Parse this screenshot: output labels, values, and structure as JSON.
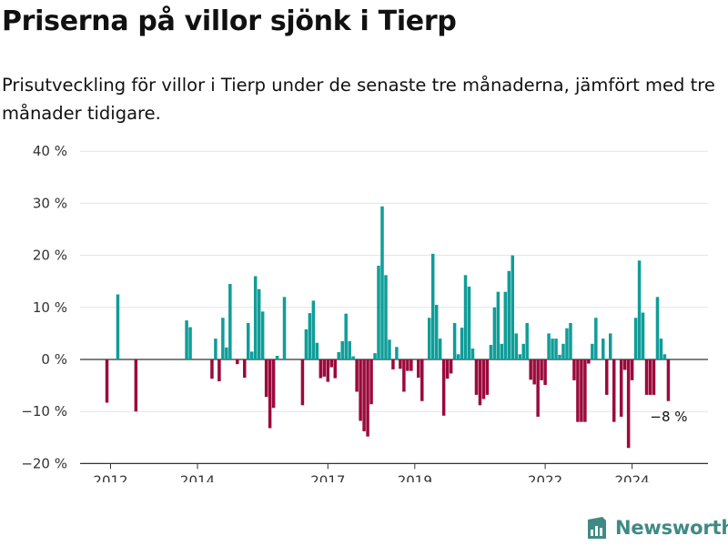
{
  "header": {
    "title": "Priserna på villor sjönk i Tierp",
    "subtitle": "Prisutveckling för villor i Tierp under de senaste tre månaderna, jämfört med tre månader tidigare."
  },
  "brand": {
    "name": "Newsworthy",
    "icon": "newsworthy-logo-icon"
  },
  "colors": {
    "positive": "#109d98",
    "negative": "#9b0a3c",
    "grid": "#e3e3e3",
    "axis": "#333333"
  },
  "chart_data": {
    "type": "bar",
    "title": "Priserna på villor sjönk i Tierp",
    "subtitle": "Prisutveckling för villor i Tierp under de senaste tre månaderna, jämfört med tre månader tidigare.",
    "xlabel": "",
    "ylabel": "",
    "unit": "%",
    "ylim": [
      -20,
      40
    ],
    "y_ticks": [
      40,
      30,
      20,
      10,
      0,
      -10,
      -20
    ],
    "y_tick_labels": [
      "40 %",
      "30 %",
      "20 %",
      "10 %",
      "0 %",
      "−10 %",
      "−20 %"
    ],
    "x_ticks": [
      "2012",
      "2014",
      "2017",
      "2019",
      "2022",
      "2024"
    ],
    "grid": true,
    "series": [
      {
        "values": [
          {
            "x": "2011-12",
            "y": -8.3
          },
          {
            "x": "2012-03",
            "y": 12.5
          },
          {
            "x": "2012-08",
            "y": -10.0
          },
          {
            "x": "2013-10",
            "y": 7.5
          },
          {
            "x": "2013-11",
            "y": 6.2
          },
          {
            "x": "2014-05",
            "y": -3.7
          },
          {
            "x": "2014-06",
            "y": 4.0
          },
          {
            "x": "2014-07",
            "y": -4.2
          },
          {
            "x": "2014-08",
            "y": 8.0
          },
          {
            "x": "2014-09",
            "y": 2.3
          },
          {
            "x": "2014-10",
            "y": 14.5
          },
          {
            "x": "2014-12",
            "y": -0.9
          },
          {
            "x": "2015-02",
            "y": -3.5
          },
          {
            "x": "2015-03",
            "y": 7.0
          },
          {
            "x": "2015-04",
            "y": 1.5
          },
          {
            "x": "2015-05",
            "y": 16.0
          },
          {
            "x": "2015-06",
            "y": 13.5
          },
          {
            "x": "2015-07",
            "y": 9.2
          },
          {
            "x": "2015-08",
            "y": -7.2
          },
          {
            "x": "2015-09",
            "y": -13.2
          },
          {
            "x": "2015-10",
            "y": -9.3
          },
          {
            "x": "2015-11",
            "y": 0.7
          },
          {
            "x": "2016-01",
            "y": 12.0
          },
          {
            "x": "2016-06",
            "y": -8.8
          },
          {
            "x": "2016-07",
            "y": 5.8
          },
          {
            "x": "2016-08",
            "y": 8.9
          },
          {
            "x": "2016-09",
            "y": 11.3
          },
          {
            "x": "2016-10",
            "y": 3.2
          },
          {
            "x": "2016-11",
            "y": -3.6
          },
          {
            "x": "2016-12",
            "y": -3.3
          },
          {
            "x": "2017-01",
            "y": -4.3
          },
          {
            "x": "2017-02",
            "y": -1.5
          },
          {
            "x": "2017-03",
            "y": -3.6
          },
          {
            "x": "2017-04",
            "y": 1.4
          },
          {
            "x": "2017-05",
            "y": 3.5
          },
          {
            "x": "2017-06",
            "y": 8.8
          },
          {
            "x": "2017-07",
            "y": 3.5
          },
          {
            "x": "2017-08",
            "y": 0.6
          },
          {
            "x": "2017-09",
            "y": -6.2
          },
          {
            "x": "2017-10",
            "y": -11.8
          },
          {
            "x": "2017-11",
            "y": -13.8
          },
          {
            "x": "2017-12",
            "y": -14.8
          },
          {
            "x": "2018-01",
            "y": -8.6
          },
          {
            "x": "2018-02",
            "y": 1.2
          },
          {
            "x": "2018-03",
            "y": 18.0
          },
          {
            "x": "2018-04",
            "y": 29.4
          },
          {
            "x": "2018-05",
            "y": 16.2
          },
          {
            "x": "2018-06",
            "y": 3.8
          },
          {
            "x": "2018-07",
            "y": -1.9
          },
          {
            "x": "2018-08",
            "y": 2.4
          },
          {
            "x": "2018-09",
            "y": -1.8
          },
          {
            "x": "2018-10",
            "y": -6.2
          },
          {
            "x": "2018-11",
            "y": -2.2
          },
          {
            "x": "2018-12",
            "y": -2.2
          },
          {
            "x": "2019-02",
            "y": -3.5
          },
          {
            "x": "2019-03",
            "y": -8.0
          },
          {
            "x": "2019-05",
            "y": 8.0
          },
          {
            "x": "2019-06",
            "y": 20.3
          },
          {
            "x": "2019-07",
            "y": 10.5
          },
          {
            "x": "2019-08",
            "y": 4.0
          },
          {
            "x": "2019-09",
            "y": -10.8
          },
          {
            "x": "2019-10",
            "y": -3.7
          },
          {
            "x": "2019-11",
            "y": -2.7
          },
          {
            "x": "2019-12",
            "y": 7.0
          },
          {
            "x": "2020-01",
            "y": 1.0
          },
          {
            "x": "2020-02",
            "y": 6.1
          },
          {
            "x": "2020-03",
            "y": 16.2
          },
          {
            "x": "2020-04",
            "y": 14.0
          },
          {
            "x": "2020-05",
            "y": 2.1
          },
          {
            "x": "2020-06",
            "y": -6.8
          },
          {
            "x": "2020-07",
            "y": -8.8
          },
          {
            "x": "2020-08",
            "y": -7.6
          },
          {
            "x": "2020-09",
            "y": -6.8
          },
          {
            "x": "2020-10",
            "y": 2.8
          },
          {
            "x": "2020-11",
            "y": 10.0
          },
          {
            "x": "2020-12",
            "y": 13.0
          },
          {
            "x": "2021-01",
            "y": 3.0
          },
          {
            "x": "2021-02",
            "y": 13.0
          },
          {
            "x": "2021-03",
            "y": 17.0
          },
          {
            "x": "2021-04",
            "y": 20.0
          },
          {
            "x": "2021-05",
            "y": 5.0
          },
          {
            "x": "2021-06",
            "y": 1.0
          },
          {
            "x": "2021-07",
            "y": 3.0
          },
          {
            "x": "2021-08",
            "y": 7.0
          },
          {
            "x": "2021-09",
            "y": -3.9
          },
          {
            "x": "2021-10",
            "y": -4.8
          },
          {
            "x": "2021-11",
            "y": -11.0
          },
          {
            "x": "2021-12",
            "y": -4.0
          },
          {
            "x": "2022-01",
            "y": -4.9
          },
          {
            "x": "2022-02",
            "y": 5.0
          },
          {
            "x": "2022-03",
            "y": 4.0
          },
          {
            "x": "2022-04",
            "y": 4.0
          },
          {
            "x": "2022-05",
            "y": 0.9
          },
          {
            "x": "2022-06",
            "y": 3.0
          },
          {
            "x": "2022-07",
            "y": 6.0
          },
          {
            "x": "2022-08",
            "y": 7.0
          },
          {
            "x": "2022-09",
            "y": -4.0
          },
          {
            "x": "2022-10",
            "y": -12.0
          },
          {
            "x": "2022-11",
            "y": -12.0
          },
          {
            "x": "2022-12",
            "y": -12.0
          },
          {
            "x": "2023-01",
            "y": -0.8
          },
          {
            "x": "2023-02",
            "y": 3.0
          },
          {
            "x": "2023-03",
            "y": 8.0
          },
          {
            "x": "2023-05",
            "y": 4.0
          },
          {
            "x": "2023-06",
            "y": -6.8
          },
          {
            "x": "2023-07",
            "y": 5.0
          },
          {
            "x": "2023-08",
            "y": -12.0
          },
          {
            "x": "2023-10",
            "y": -11.0
          },
          {
            "x": "2023-11",
            "y": -2.0
          },
          {
            "x": "2023-12",
            "y": -17.0
          },
          {
            "x": "2024-01",
            "y": -4.0
          },
          {
            "x": "2024-02",
            "y": 8.0
          },
          {
            "x": "2024-03",
            "y": 19.0
          },
          {
            "x": "2024-04",
            "y": 9.0
          },
          {
            "x": "2024-05",
            "y": -6.8
          },
          {
            "x": "2024-06",
            "y": -6.8
          },
          {
            "x": "2024-07",
            "y": -6.8
          },
          {
            "x": "2024-08",
            "y": 12.0
          },
          {
            "x": "2024-09",
            "y": 4.0
          },
          {
            "x": "2024-10",
            "y": 1.0
          },
          {
            "x": "2024-11",
            "y": -8.0
          }
        ]
      }
    ],
    "annotations": [
      {
        "text": "−8 %",
        "x": "2024-11",
        "y": -8.0
      }
    ]
  }
}
